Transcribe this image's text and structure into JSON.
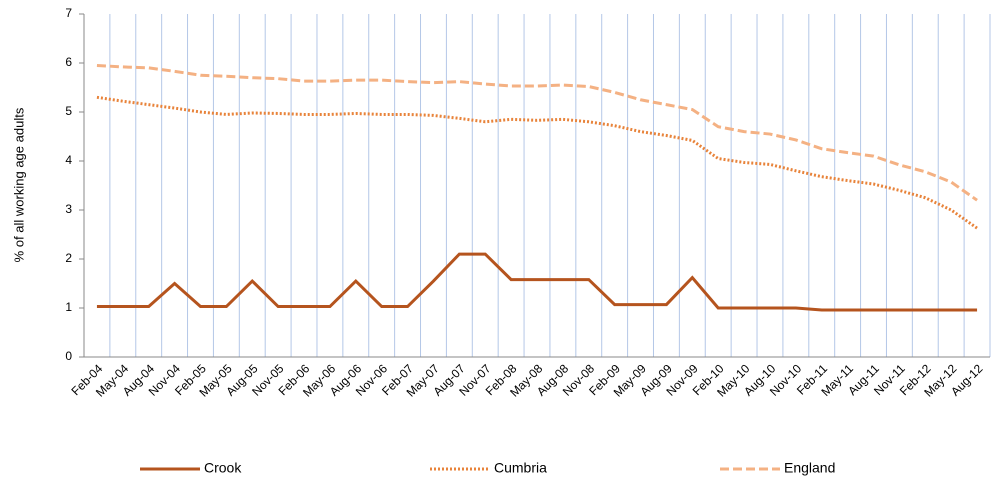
{
  "chart_data": {
    "type": "line",
    "y_label": "% of all working age adults",
    "categories": [
      "Feb-04",
      "May-04",
      "Aug-04",
      "Nov-04",
      "Feb-05",
      "May-05",
      "Aug-05",
      "Nov-05",
      "Feb-06",
      "May-06",
      "Aug-06",
      "Nov-06",
      "Feb-07",
      "May-07",
      "Aug-07",
      "Nov-07",
      "Feb-08",
      "May-08",
      "Aug-08",
      "Nov-08",
      "Feb-09",
      "May-09",
      "Aug-09",
      "Nov-09",
      "Feb-10",
      "May-10",
      "Aug-10",
      "Nov-10",
      "Feb-11",
      "May-11",
      "Aug-11",
      "Nov-11",
      "Feb-12",
      "May-12",
      "Aug-12"
    ],
    "series": [
      {
        "name": "Crook",
        "color": "#b5541e",
        "style": "solid",
        "values": [
          1.03,
          1.03,
          1.03,
          1.5,
          1.03,
          1.03,
          1.55,
          1.03,
          1.03,
          1.03,
          1.55,
          1.03,
          1.03,
          1.55,
          2.1,
          2.1,
          1.58,
          1.58,
          1.58,
          1.58,
          1.07,
          1.07,
          1.07,
          1.62,
          1.0,
          1.0,
          1.0,
          1.0,
          0.96,
          0.96,
          0.96,
          0.96,
          0.96,
          0.96,
          0.96
        ]
      },
      {
        "name": "Cumbria",
        "color": "#e8833a",
        "style": "dotted",
        "values": [
          5.3,
          5.22,
          5.15,
          5.08,
          5.0,
          4.95,
          4.98,
          4.97,
          4.95,
          4.95,
          4.97,
          4.95,
          4.95,
          4.93,
          4.87,
          4.8,
          4.85,
          4.83,
          4.85,
          4.8,
          4.72,
          4.6,
          4.52,
          4.42,
          4.05,
          3.97,
          3.93,
          3.8,
          3.68,
          3.6,
          3.53,
          3.4,
          3.25,
          3.0,
          2.63
        ]
      },
      {
        "name": "England",
        "color": "#f4b183",
        "style": "dashed",
        "values": [
          5.95,
          5.92,
          5.9,
          5.83,
          5.75,
          5.73,
          5.7,
          5.68,
          5.63,
          5.63,
          5.65,
          5.65,
          5.62,
          5.6,
          5.62,
          5.57,
          5.53,
          5.53,
          5.55,
          5.52,
          5.4,
          5.25,
          5.15,
          5.05,
          4.7,
          4.6,
          4.55,
          4.43,
          4.25,
          4.17,
          4.1,
          3.92,
          3.78,
          3.57,
          3.2
        ]
      }
    ],
    "ylim": [
      0,
      7
    ],
    "yticks": [
      0,
      1,
      2,
      3,
      4,
      5,
      6,
      7
    ],
    "grid": "vertical",
    "legend": "bottom"
  }
}
